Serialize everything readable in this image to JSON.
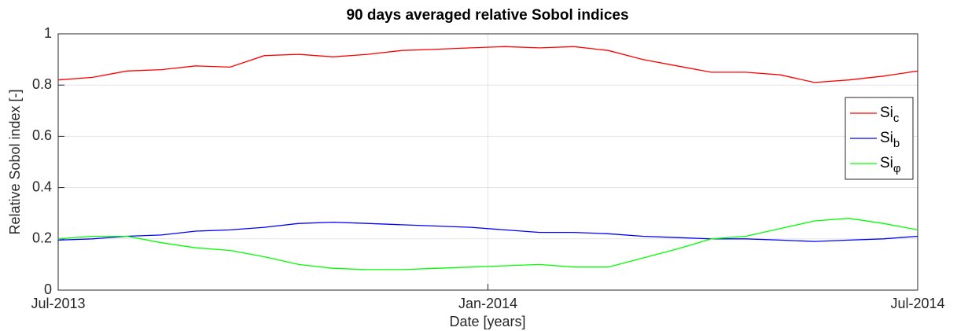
{
  "chart_data": {
    "type": "line",
    "title": "90 days averaged relative Sobol indices",
    "x_label": "Date [years]",
    "y_label": "Relative Sobol index [-]",
    "x": [
      2013.5,
      2013.54,
      2013.58,
      2013.62,
      2013.66,
      2013.7,
      2013.74,
      2013.78,
      2013.82,
      2013.86,
      2013.9,
      2013.94,
      2013.98,
      2014.02,
      2014.06,
      2014.1,
      2014.14,
      2014.18,
      2014.22,
      2014.26,
      2014.3,
      2014.34,
      2014.38,
      2014.42,
      2014.46,
      2014.5
    ],
    "series": [
      {
        "name": "Si_c",
        "color": "#ff0000",
        "values": [
          0.82,
          0.83,
          0.855,
          0.86,
          0.875,
          0.87,
          0.915,
          0.92,
          0.91,
          0.92,
          0.935,
          0.94,
          0.945,
          0.95,
          0.945,
          0.95,
          0.935,
          0.9,
          0.875,
          0.85,
          0.85,
          0.84,
          0.81,
          0.82,
          0.835,
          0.855
        ]
      },
      {
        "name": "Si_b",
        "color": "#0000ff",
        "values": [
          0.195,
          0.2,
          0.21,
          0.215,
          0.23,
          0.235,
          0.245,
          0.26,
          0.265,
          0.26,
          0.255,
          0.25,
          0.245,
          0.235,
          0.225,
          0.225,
          0.22,
          0.21,
          0.205,
          0.2,
          0.2,
          0.195,
          0.19,
          0.195,
          0.2,
          0.21
        ]
      },
      {
        "name": "Si_φ",
        "color": "#00ff00",
        "values": [
          0.2,
          0.21,
          0.21,
          0.185,
          0.165,
          0.155,
          0.13,
          0.1,
          0.085,
          0.08,
          0.08,
          0.085,
          0.09,
          0.095,
          0.1,
          0.09,
          0.09,
          0.125,
          0.16,
          0.2,
          0.21,
          0.24,
          0.27,
          0.28,
          0.26,
          0.235
        ]
      }
    ],
    "xlim": [
      2013.5,
      2014.5
    ],
    "xticks": [
      {
        "value": 2013.5,
        "label": "Jul-2013"
      },
      {
        "value": 2014.0,
        "label": "Jan-2014"
      },
      {
        "value": 2014.5,
        "label": "Jul-2014"
      }
    ],
    "ylim": [
      0,
      1
    ],
    "yticks": [
      0,
      0.2,
      0.4,
      0.6,
      0.8,
      1
    ],
    "grid": true,
    "legend_position": "right"
  }
}
